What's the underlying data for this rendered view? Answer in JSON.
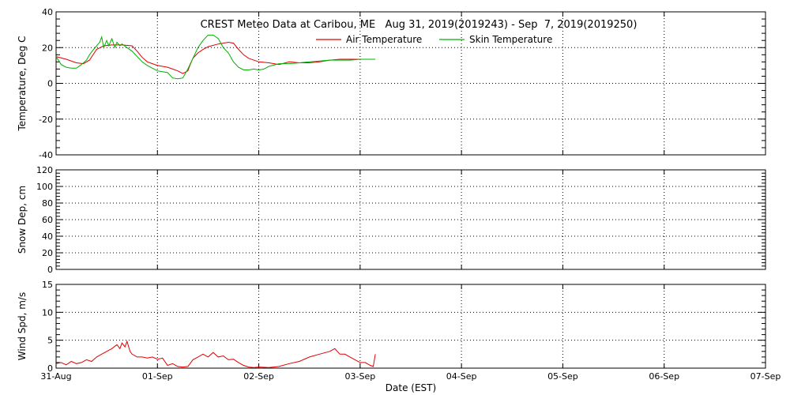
{
  "title": "CREST Meteo Data at Caribou, ME   Aug 31, 2019(2019243) - Sep  7, 2019(2019250)",
  "xlabel": "Date (EST)",
  "colors": {
    "air": "#e00000",
    "skin": "#00b000",
    "wind": "#e00000",
    "axis": "#000000",
    "grid": "#000000"
  },
  "chart_data": [
    {
      "type": "line",
      "ylabel": "Temperature, Deg C",
      "ylim": [
        -40,
        40
      ],
      "yticks": [
        -40,
        -20,
        0,
        20,
        40
      ],
      "xlim": [
        0,
        7
      ],
      "xticks": [
        0,
        1,
        2,
        3,
        4,
        5,
        6,
        7
      ],
      "xtick_labels": [
        "31-Aug",
        "01-Sep",
        "02-Sep",
        "03-Sep",
        "04-Sep",
        "05-Sep",
        "06-Sep",
        "07-Sep"
      ],
      "grid": true,
      "legend": "top-center",
      "series": [
        {
          "name": "Air Temperature",
          "x": [
            0,
            0.1,
            0.2,
            0.27,
            0.33,
            0.4,
            0.47,
            0.55,
            0.65,
            0.75,
            0.8,
            0.85,
            0.9,
            0.95,
            1.0,
            1.1,
            1.15,
            1.2,
            1.25,
            1.3,
            1.32,
            1.35,
            1.4,
            1.45,
            1.5,
            1.6,
            1.7,
            1.75,
            1.8,
            1.85,
            1.9,
            2.0,
            2.1,
            2.2,
            2.3,
            2.4,
            2.5,
            2.6,
            2.7,
            2.8,
            2.9,
            3.0,
            3.1,
            3.15
          ],
          "values": [
            15,
            13.5,
            11.5,
            11,
            13,
            19,
            21,
            21.5,
            21.5,
            21,
            18,
            14.5,
            12,
            11,
            10,
            9,
            8,
            7,
            5.5,
            7,
            10,
            14,
            17,
            19,
            20.5,
            22,
            23,
            22.5,
            19,
            16,
            14,
            12,
            11.5,
            10.5,
            12,
            11.5,
            11.5,
            12,
            13,
            13.5,
            13.5,
            13.5,
            13.5,
            13.5
          ]
        },
        {
          "name": "Skin Temperature",
          "x": [
            0,
            0.05,
            0.1,
            0.15,
            0.2,
            0.25,
            0.3,
            0.33,
            0.37,
            0.4,
            0.43,
            0.45,
            0.47,
            0.5,
            0.52,
            0.55,
            0.58,
            0.6,
            0.63,
            0.65,
            0.7,
            0.75,
            0.8,
            0.85,
            0.9,
            0.95,
            1.0,
            1.05,
            1.1,
            1.15,
            1.2,
            1.25,
            1.3,
            1.35,
            1.4,
            1.45,
            1.5,
            1.55,
            1.6,
            1.65,
            1.7,
            1.75,
            1.8,
            1.85,
            1.9,
            1.95,
            2.0,
            2.05,
            2.1,
            2.2,
            2.3,
            2.4,
            2.5,
            2.6,
            2.7,
            2.8,
            2.9,
            3.0,
            3.1,
            3.15
          ],
          "values": [
            15,
            10.5,
            9,
            8.5,
            8.5,
            10.5,
            13,
            16,
            19,
            21,
            23,
            26,
            20,
            24,
            21,
            25,
            20,
            23,
            21,
            22,
            20,
            18,
            15,
            12,
            10,
            8.5,
            7,
            6.5,
            6,
            3,
            2.5,
            3,
            8,
            14,
            20,
            24,
            27,
            27,
            25,
            20,
            17,
            12,
            9,
            7.5,
            7.5,
            8,
            7.5,
            8,
            9.5,
            11,
            11,
            11.5,
            12,
            12.5,
            13,
            13,
            13,
            13.5,
            13.5,
            13.5
          ]
        }
      ]
    },
    {
      "type": "line",
      "ylabel": "Snow Dep, cm",
      "ylim": [
        0,
        120
      ],
      "yticks": [
        0,
        20,
        40,
        60,
        80,
        100,
        120
      ],
      "xlim": [
        0,
        7
      ],
      "grid": true,
      "series": []
    },
    {
      "type": "line",
      "ylabel": "Wind Spd, m/s",
      "ylim": [
        0,
        15
      ],
      "yticks": [
        0,
        5,
        10,
        15
      ],
      "xlim": [
        0,
        7
      ],
      "grid": true,
      "series": [
        {
          "x": [
            0,
            0.05,
            0.1,
            0.15,
            0.2,
            0.25,
            0.3,
            0.35,
            0.4,
            0.45,
            0.5,
            0.55,
            0.6,
            0.63,
            0.65,
            0.68,
            0.7,
            0.73,
            0.75,
            0.8,
            0.85,
            0.9,
            0.95,
            1.0,
            1.05,
            1.1,
            1.15,
            1.2,
            1.25,
            1.3,
            1.35,
            1.4,
            1.45,
            1.5,
            1.55,
            1.6,
            1.65,
            1.7,
            1.75,
            1.8,
            1.85,
            1.9,
            1.95,
            2.0,
            2.1,
            2.2,
            2.3,
            2.4,
            2.5,
            2.6,
            2.7,
            2.75,
            2.8,
            2.85,
            2.9,
            2.95,
            3.0,
            3.05,
            3.1,
            3.13,
            3.15
          ],
          "values": [
            0.8,
            1.0,
            0.6,
            1.2,
            0.8,
            1.0,
            1.5,
            1.2,
            2.0,
            2.5,
            3.0,
            3.5,
            4.2,
            3.5,
            4.5,
            3.8,
            4.8,
            3.0,
            2.5,
            2.0,
            2.0,
            1.8,
            2.0,
            1.6,
            1.8,
            0.5,
            0.8,
            0.3,
            0.2,
            0.3,
            1.5,
            2.0,
            2.5,
            2.0,
            2.8,
            2.0,
            2.2,
            1.5,
            1.6,
            1.0,
            0.5,
            0.2,
            0.1,
            0.2,
            0.1,
            0.3,
            0.8,
            1.2,
            2.0,
            2.5,
            3.0,
            3.5,
            2.5,
            2.5,
            2.0,
            1.5,
            1.0,
            1.0,
            0.5,
            0.3,
            2.5
          ]
        }
      ]
    }
  ]
}
